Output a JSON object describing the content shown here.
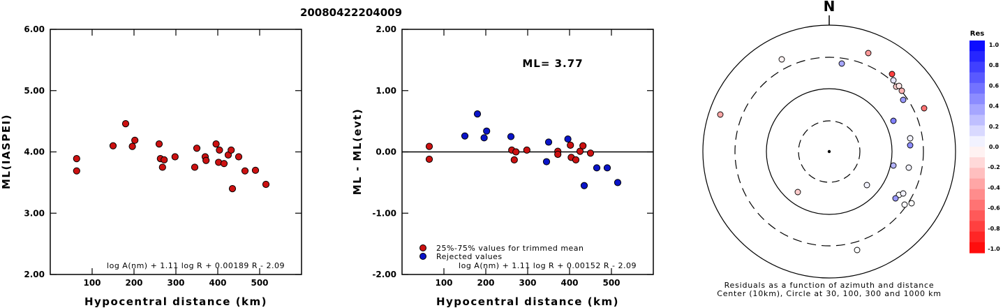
{
  "title": "20080422204009",
  "colors": {
    "accepted": "#cc1111",
    "rejected": "#0a14c8",
    "axis": "#000000"
  },
  "chart_data": [
    {
      "type": "scatter",
      "xlabel": "Hypocentral distance (km)",
      "ylabel": "ML(IASPEI)",
      "xlim": [
        0,
        600
      ],
      "ylim": [
        2.0,
        6.0
      ],
      "x_ticks": [
        "100",
        "200",
        "300",
        "400",
        "500"
      ],
      "y_ticks": [
        "2.00",
        "3.00",
        "4.00",
        "5.00",
        "6.00"
      ],
      "formula": "log A(nm) + 1.11 log R + 0.00189 R - 2.09",
      "points": [
        [
          63,
          3.89
        ],
        [
          63,
          3.69
        ],
        [
          150,
          4.1
        ],
        [
          180,
          4.46
        ],
        [
          196,
          4.09
        ],
        [
          202,
          4.19
        ],
        [
          260,
          4.13
        ],
        [
          263,
          3.89
        ],
        [
          268,
          3.75
        ],
        [
          272,
          3.87
        ],
        [
          298,
          3.92
        ],
        [
          345,
          3.75
        ],
        [
          350,
          4.06
        ],
        [
          370,
          3.92
        ],
        [
          372,
          3.86
        ],
        [
          396,
          4.13
        ],
        [
          402,
          3.83
        ],
        [
          404,
          4.03
        ],
        [
          415,
          3.81
        ],
        [
          425,
          3.95
        ],
        [
          432,
          4.03
        ],
        [
          435,
          3.4
        ],
        [
          450,
          3.92
        ],
        [
          465,
          3.69
        ],
        [
          490,
          3.7
        ],
        [
          515,
          3.47
        ]
      ]
    },
    {
      "type": "scatter",
      "xlabel": "Hypocentral distance (km)",
      "ylabel": "ML - ML(evt)",
      "xlim": [
        0,
        600
      ],
      "ylim": [
        -2.0,
        2.0
      ],
      "x_ticks": [
        "100",
        "200",
        "300",
        "400",
        "500"
      ],
      "y_ticks": [
        "-2.00",
        "-1.00",
        "0.00",
        "1.00",
        "2.00"
      ],
      "ml_label": "ML= 3.77",
      "formula": "log A(nm) + 1.11 log R + 0.00152 R - 2.09",
      "legend": {
        "accepted": "25%-75% values for trimmed mean",
        "rejected": "Rejected values"
      },
      "accepted_points": [
        [
          65,
          0.09
        ],
        [
          65,
          -0.12
        ],
        [
          262,
          0.03
        ],
        [
          268,
          -0.13
        ],
        [
          272,
          0.0
        ],
        [
          298,
          0.03
        ],
        [
          372,
          0.01
        ],
        [
          372,
          -0.04
        ],
        [
          402,
          0.11
        ],
        [
          404,
          -0.09
        ],
        [
          415,
          -0.13
        ],
        [
          425,
          0.01
        ],
        [
          432,
          0.1
        ],
        [
          450,
          -0.02
        ]
      ],
      "rejected_points": [
        [
          150,
          0.26
        ],
        [
          180,
          0.62
        ],
        [
          196,
          0.23
        ],
        [
          202,
          0.34
        ],
        [
          260,
          0.25
        ],
        [
          345,
          -0.16
        ],
        [
          350,
          0.16
        ],
        [
          396,
          0.21
        ],
        [
          435,
          -0.55
        ],
        [
          465,
          -0.26
        ],
        [
          490,
          -0.26
        ],
        [
          515,
          -0.5
        ]
      ]
    },
    {
      "type": "polar-scatter",
      "north_label": "N",
      "caption_line1": "Residuals as a function of azimuth and distance",
      "caption_line2": "Center (10km), Circle at 30, 100, 300 and 1000 km",
      "colorbar_title": "Res",
      "colorbar_ticks": [
        "1.0",
        "0.8",
        "0.6",
        "0.4",
        "0.2",
        "0.0",
        "-0.2",
        "-0.4",
        "-0.6",
        "-0.8",
        "-1.0"
      ],
      "points": [
        {
          "dx": -68,
          "dy": -132,
          "res": -0.05
        },
        {
          "dx": 56,
          "dy": -141,
          "res": -0.4
        },
        {
          "dx": 18,
          "dy": -126,
          "res": 0.35
        },
        {
          "dx": -156,
          "dy": -53,
          "res": -0.35
        },
        {
          "dx": 90,
          "dy": -111,
          "res": -0.75
        },
        {
          "dx": 92,
          "dy": -102,
          "res": 0.1
        },
        {
          "dx": 96,
          "dy": -93,
          "res": -0.2
        },
        {
          "dx": 100,
          "dy": -94,
          "res": -0.1
        },
        {
          "dx": 104,
          "dy": -87,
          "res": -0.3
        },
        {
          "dx": 106,
          "dy": -74,
          "res": 0.4
        },
        {
          "dx": 136,
          "dy": -62,
          "res": -0.55
        },
        {
          "dx": 92,
          "dy": -44,
          "res": 0.5
        },
        {
          "dx": 116,
          "dy": -19,
          "res": 0.05
        },
        {
          "dx": 116,
          "dy": -9,
          "res": 0.45
        },
        {
          "dx": 92,
          "dy": 20,
          "res": 0.3
        },
        {
          "dx": 114,
          "dy": 23,
          "res": 0.05
        },
        {
          "dx": 54,
          "dy": 48,
          "res": 0.05
        },
        {
          "dx": -45,
          "dy": 58,
          "res": -0.2
        },
        {
          "dx": 100,
          "dy": 62,
          "res": 0.0
        },
        {
          "dx": 106,
          "dy": 60,
          "res": 0.05
        },
        {
          "dx": 95,
          "dy": 67,
          "res": 0.4
        },
        {
          "dx": 108,
          "dy": 76,
          "res": 0.02
        },
        {
          "dx": 118,
          "dy": 74,
          "res": 0.0
        },
        {
          "dx": 40,
          "dy": 141,
          "res": 0.0
        }
      ]
    }
  ]
}
